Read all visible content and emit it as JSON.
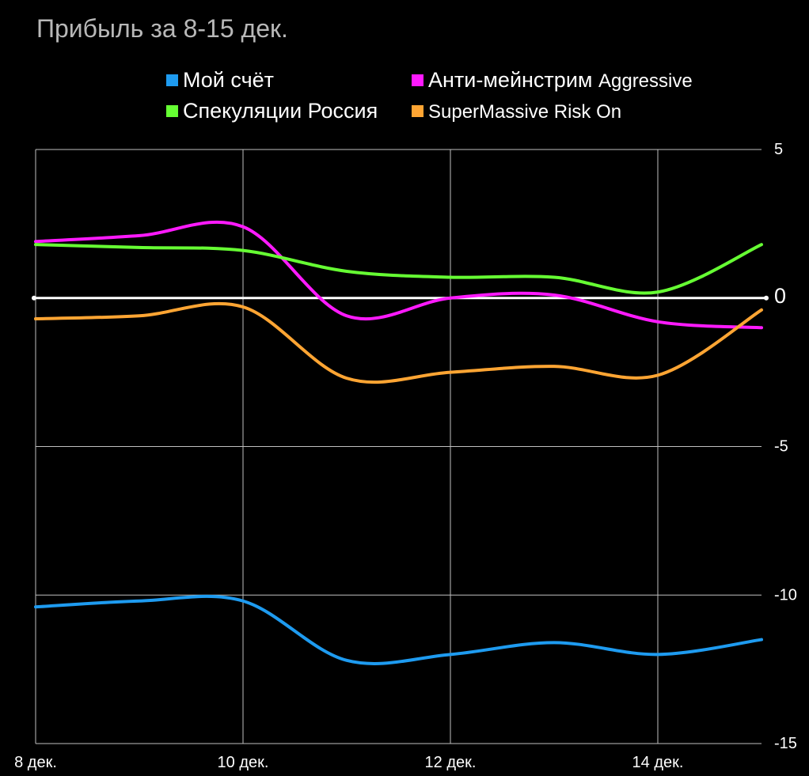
{
  "title": "Прибыль за 8-15 дек.",
  "chart_data": {
    "type": "line",
    "x": [
      "8 дек.",
      "9 дек.",
      "10 дек.",
      "11 дек.",
      "12 дек.",
      "13 дек.",
      "14 дек.",
      "15 дек."
    ],
    "xticks": [
      "8 дек.",
      "10 дек.",
      "12 дек.",
      "14 дек."
    ],
    "yticks": [
      "5",
      "0",
      "-5",
      "-10",
      "-15"
    ],
    "ylim": [
      -15,
      5
    ],
    "grid": true,
    "legend_position": "top",
    "series": [
      {
        "name": "Мой счёт",
        "color": "#1e9bf0",
        "values": [
          -10.4,
          -10.2,
          -10.2,
          -12.2,
          -12.0,
          -11.6,
          -12.0,
          -11.5
        ]
      },
      {
        "name": "Анти-мейнстрим",
        "name_suffix": "Aggressive",
        "color": "#ff1aff",
        "values": [
          1.9,
          2.1,
          2.4,
          -0.6,
          0.0,
          0.1,
          -0.8,
          -1.0
        ]
      },
      {
        "name": "Спекуляции Россия",
        "color": "#66ff33",
        "values": [
          1.8,
          1.7,
          1.6,
          0.9,
          0.7,
          0.7,
          0.2,
          1.8
        ]
      },
      {
        "name": "SuperMassive Risk On",
        "color": "#ffa533",
        "values": [
          -0.7,
          -0.6,
          -0.3,
          -2.7,
          -2.5,
          -2.3,
          -2.6,
          -0.4
        ]
      }
    ]
  }
}
